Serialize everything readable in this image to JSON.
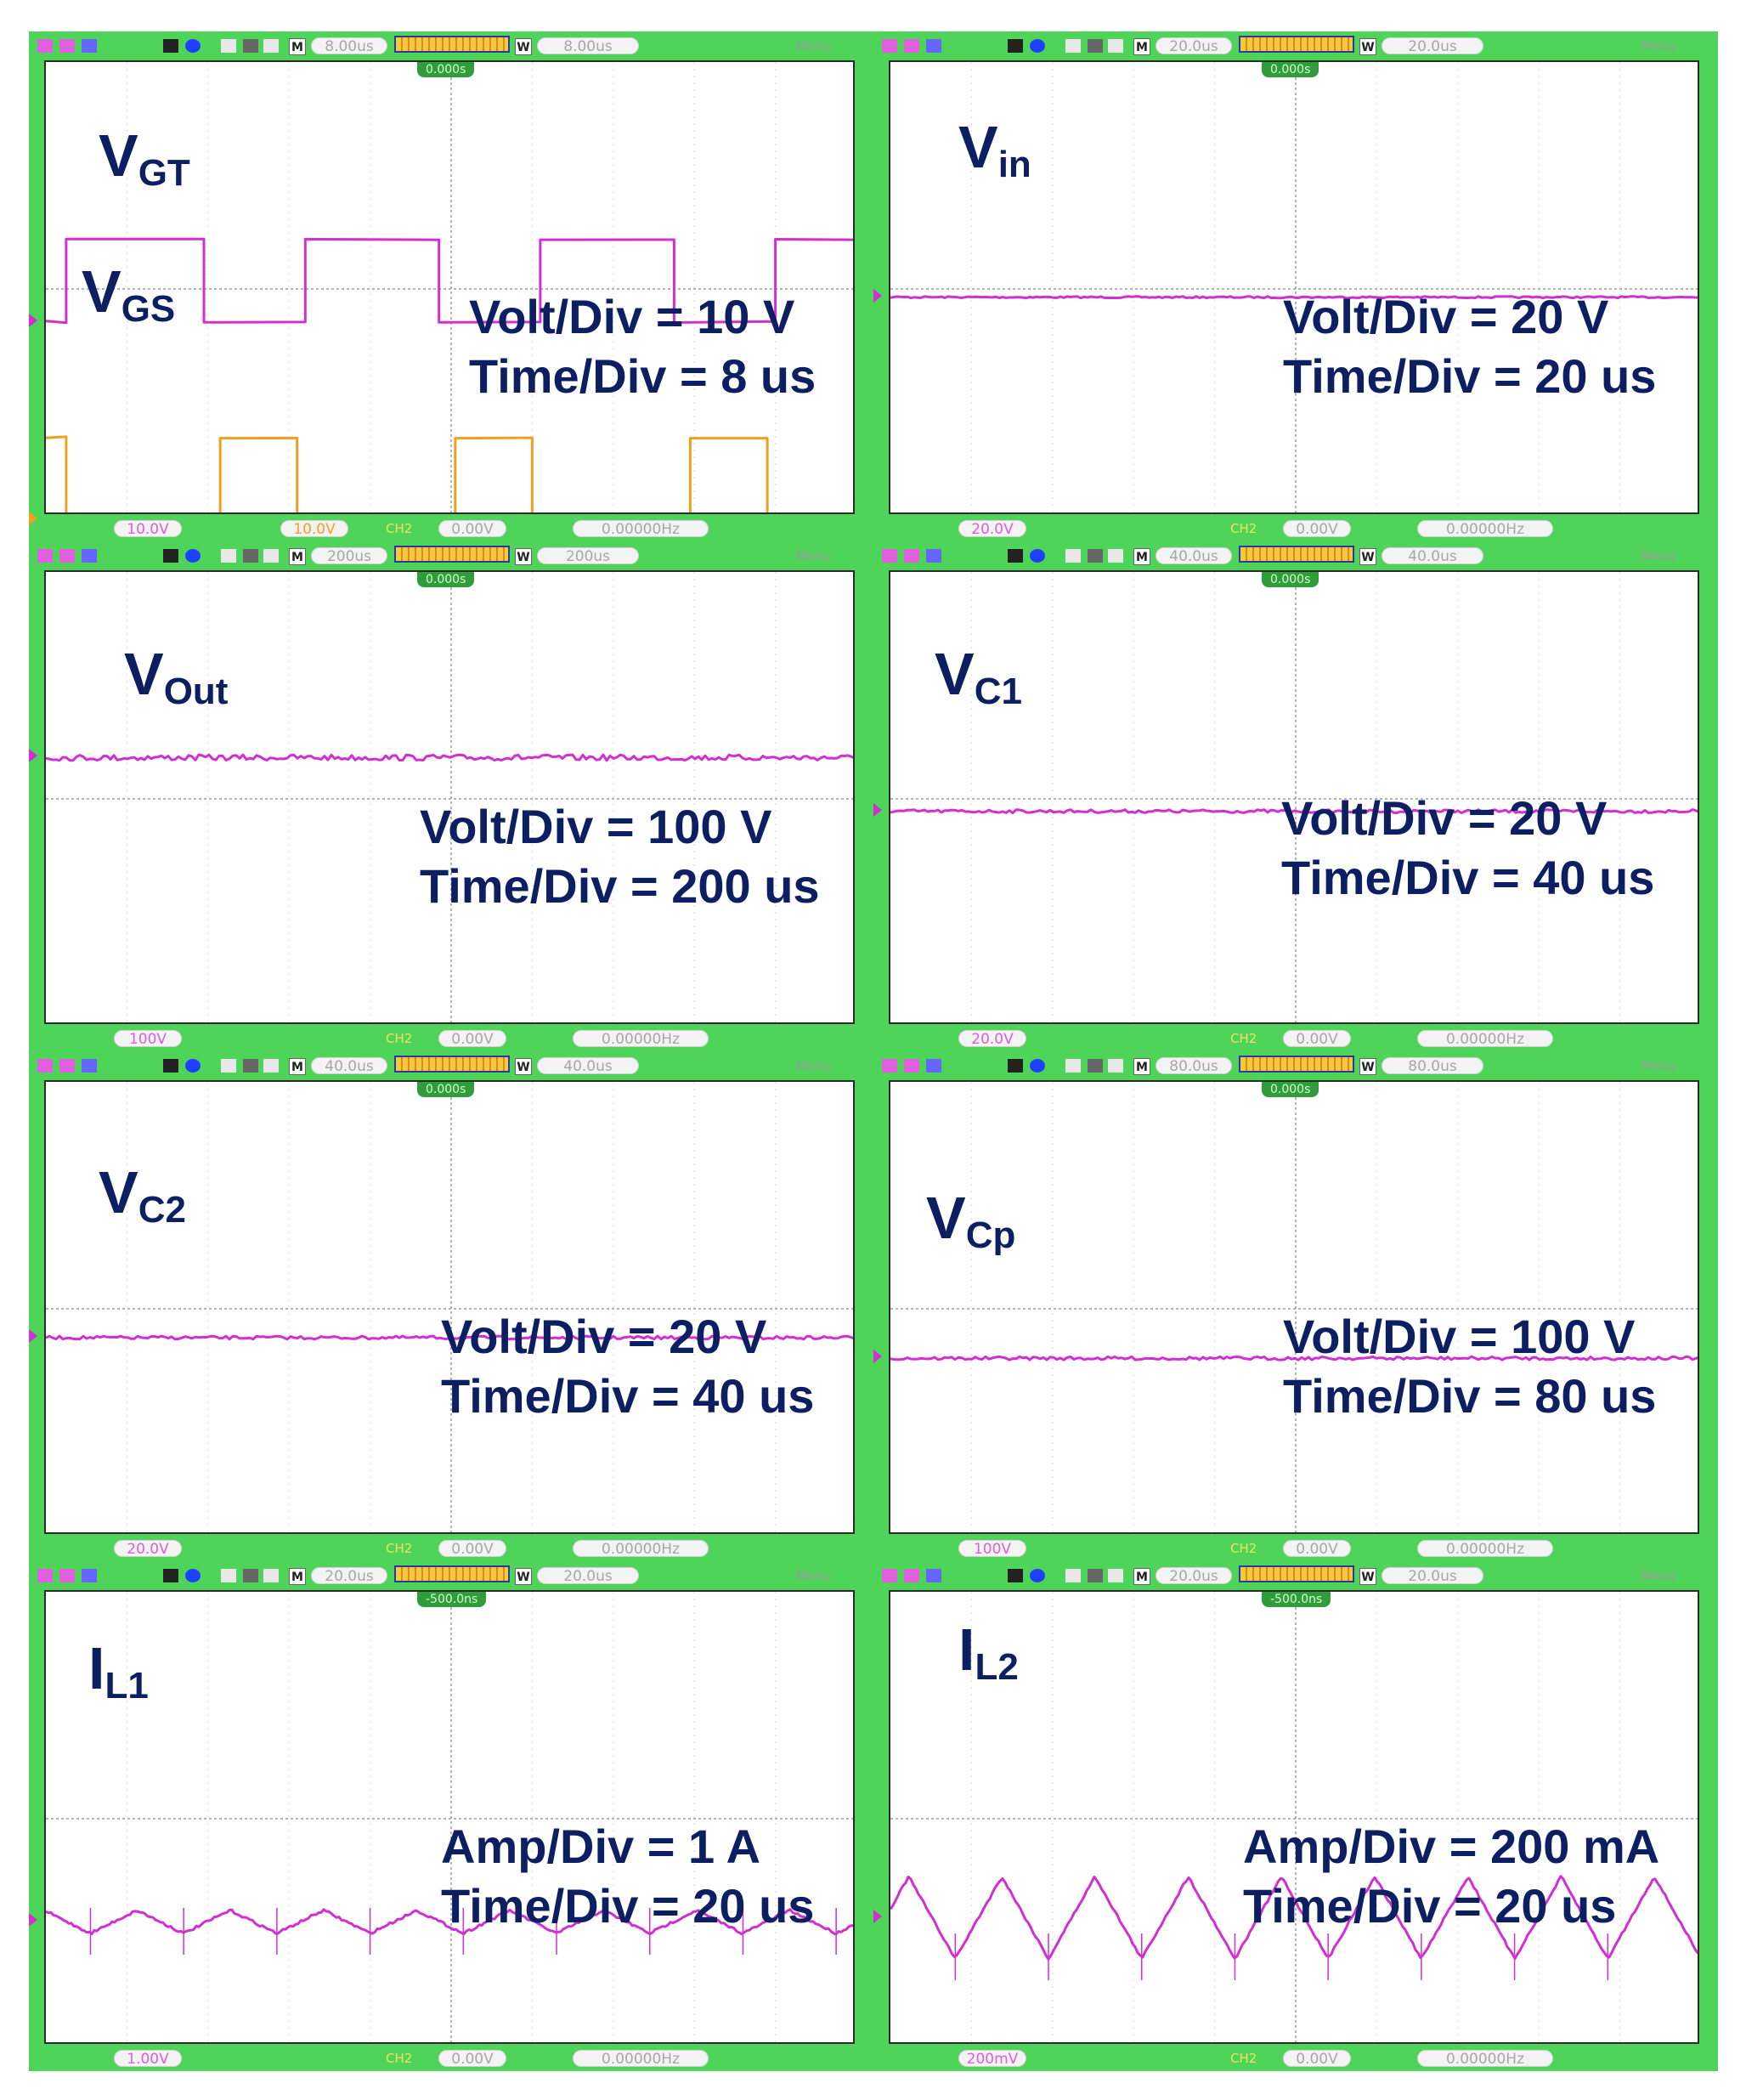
{
  "chart_data": [
    {
      "type": "line",
      "signals": [
        {
          "name": "VGT",
          "color": "#d22fd2",
          "waveform": "square",
          "low_div": 2.35,
          "high_div": 3.35,
          "pts": [
            [
              0,
              0
            ],
            [
              0.25,
              0
            ],
            [
              0.25,
              1
            ],
            [
              1.95,
              1
            ],
            [
              1.95,
              0
            ],
            [
              3.2,
              0
            ],
            [
              3.2,
              1
            ],
            [
              4.85,
              1
            ],
            [
              4.85,
              0
            ],
            [
              6.1,
              0
            ],
            [
              6.1,
              1
            ],
            [
              7.75,
              1
            ],
            [
              7.75,
              0
            ],
            [
              9.0,
              0
            ],
            [
              9.0,
              1
            ],
            [
              10,
              1
            ]
          ]
        },
        {
          "name": "VGS",
          "color": "#f0a020",
          "waveform": "square",
          "low_div": -0.05,
          "high_div": 0.95,
          "pts": [
            [
              0,
              1
            ],
            [
              0.25,
              1
            ],
            [
              0.25,
              0
            ],
            [
              2.15,
              0
            ],
            [
              2.15,
              1
            ],
            [
              3.1,
              1
            ],
            [
              3.1,
              0
            ],
            [
              5.05,
              0
            ],
            [
              5.05,
              1
            ],
            [
              6.0,
              1
            ],
            [
              6.0,
              0
            ],
            [
              7.95,
              0
            ],
            [
              7.95,
              1
            ],
            [
              8.9,
              1
            ],
            [
              8.9,
              0
            ],
            [
              10,
              0
            ]
          ]
        }
      ],
      "prefix": "V",
      "label_subs": [
        "GT",
        "GS"
      ],
      "volt_div": "10 V",
      "time_div": "8 us",
      "status": {
        "m": "8.00us",
        "w": "8.00us",
        "t": "0.000s",
        "ch1": "10.0V",
        "ch2": "10.0V",
        "trig": "0.00V",
        "freq": "0.00000Hz"
      }
    },
    {
      "type": "line",
      "signals": [
        {
          "name": "Vin",
          "color": "#d22fd2",
          "waveform": "dc",
          "level_div": 2.65,
          "noise": 0.01
        }
      ],
      "prefix": "V",
      "label_subs": [
        "in"
      ],
      "volt_div": "20 V",
      "time_div": "20 us",
      "status": {
        "m": "20.0us",
        "w": "20.0us",
        "t": "0.000s",
        "ch1": "20.0V",
        "trig": "0.00V",
        "freq": "0.00000Hz"
      }
    },
    {
      "type": "line",
      "signals": [
        {
          "name": "VOut",
          "color": "#d22fd2",
          "waveform": "dc",
          "level_div": 3.25,
          "noise": 0.035
        }
      ],
      "prefix": "V",
      "label_subs": [
        "Out"
      ],
      "volt_div": "100 V",
      "time_div": "200 us",
      "status": {
        "m": "200us",
        "w": "200us",
        "t": "0.000s",
        "ch1": "100V",
        "trig": "0.00V",
        "freq": "0.00000Hz"
      }
    },
    {
      "type": "line",
      "signals": [
        {
          "name": "VC1",
          "color": "#d22fd2",
          "waveform": "dc",
          "level_div": 2.6,
          "noise": 0.02
        }
      ],
      "prefix": "V",
      "label_subs": [
        "C1"
      ],
      "volt_div": "20 V",
      "time_div": "40 us",
      "status": {
        "m": "40.0us",
        "w": "40.0us",
        "t": "0.000s",
        "ch1": "20.0V",
        "trig": "0.00V",
        "freq": "0.00000Hz"
      }
    },
    {
      "type": "line",
      "signals": [
        {
          "name": "VC2",
          "color": "#d22fd2",
          "waveform": "dc",
          "level_div": 2.4,
          "noise": 0.02
        }
      ],
      "prefix": "V",
      "label_subs": [
        "C2"
      ],
      "volt_div": "20 V",
      "time_div": "40 us",
      "status": {
        "m": "40.0us",
        "w": "40.0us",
        "t": "0.000s",
        "ch1": "20.0V",
        "trig": "0.00V",
        "freq": "0.00000Hz"
      }
    },
    {
      "type": "line",
      "signals": [
        {
          "name": "VCp",
          "color": "#d22fd2",
          "waveform": "dc",
          "level_div": 2.15,
          "noise": 0.02
        }
      ],
      "prefix": "V",
      "label_subs": [
        "Cp"
      ],
      "volt_div": "100 V",
      "time_div": "80 us",
      "status": {
        "m": "80.0us",
        "w": "80.0us",
        "t": "0.000s",
        "ch1": "100V",
        "trig": "0.00V",
        "freq": "0.00000Hz"
      }
    },
    {
      "type": "line",
      "signals": [
        {
          "name": "IL1",
          "color": "#d22fd2",
          "waveform": "triangle",
          "center_div": 1.5,
          "amp_div": 0.14,
          "period_div": 1.15,
          "phase_div": 0.6,
          "spikes": true
        }
      ],
      "prefix": "I",
      "label_subs": [
        "L1"
      ],
      "volt_div_label": "Amp/Div = 1 A",
      "time_div": "20 us",
      "status": {
        "m": "20.0us",
        "w": "20.0us",
        "t": "-500.0ns",
        "ch1": "1.00V",
        "trig": "0.00V",
        "freq": "0.00000Hz"
      }
    },
    {
      "type": "line",
      "signals": [
        {
          "name": "IL2",
          "color": "#d22fd2",
          "waveform": "triangle",
          "center_div": 1.55,
          "amp_div": 0.5,
          "period_div": 1.15,
          "phase_div": 0.35,
          "spikes": true
        }
      ],
      "prefix": "I",
      "label_subs": [
        "L2"
      ],
      "volt_div_label": "Amp/Div = 200 mA",
      "time_div": "20 us",
      "status": {
        "m": "20.0us",
        "w": "20.0us",
        "t": "-500.0ns",
        "ch1": "200mV",
        "trig": "0.00V",
        "freq": "0.00000Hz"
      }
    }
  ],
  "text": {
    "p0": {
      "sym1": "V",
      "sub1": "GT",
      "sym2": "V",
      "sub2": "GS",
      "scale1": "Volt/Div = 10 V",
      "scale2": "Time/Div = 8 us"
    },
    "p1": {
      "sym1": "V",
      "sub1": "in",
      "scale1": "Volt/Div = 20 V",
      "scale2": "Time/Div = 20 us"
    },
    "p2": {
      "sym1": "V",
      "sub1": "Out",
      "scale1": "Volt/Div = 100 V",
      "scale2": "Time/Div = 200 us"
    },
    "p3": {
      "sym1": "V",
      "sub1": "C1",
      "scale1": "Volt/Div = 20 V",
      "scale2": "Time/Div = 40 us"
    },
    "p4": {
      "sym1": "V",
      "sub1": "C2",
      "scale1": "Volt/Div = 20 V",
      "scale2": "Time/Div = 40 us"
    },
    "p5": {
      "sym1": "V",
      "sub1": "Cp",
      "scale1": "Volt/Div = 100 V",
      "scale2": "Time/Div = 80 us"
    },
    "p6": {
      "sym1": "I",
      "sub1": "L1",
      "scale1": "Amp/Div = 1 A",
      "scale2": "Time/Div = 20 us"
    },
    "p7": {
      "sym1": "I",
      "sub1": "L2",
      "scale1": "Amp/Div = 200 mA",
      "scale2": "Time/Div = 20 us"
    }
  },
  "ui": {
    "m_label": "M",
    "w_label": "W",
    "menu": "Menu",
    "ch2": "CH2",
    "colors": {
      "bezel": "#4fd45a",
      "trace_ch1": "#d22fd2",
      "trace_ch2": "#f0a020",
      "label": "#0c1f63",
      "grid": "#b0b0b0"
    }
  }
}
